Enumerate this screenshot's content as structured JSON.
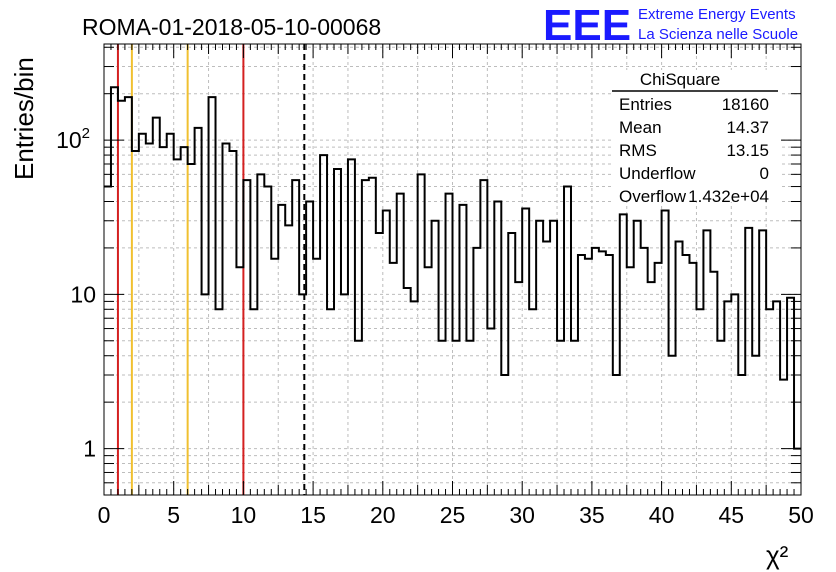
{
  "run_title": "ROMA-01-2018-05-10-00068",
  "logo": {
    "text": "EEE",
    "line1": "Extreme Energy Events",
    "line2": "La Scienza nelle Scuole",
    "color": "#1a1aff"
  },
  "stats_box": {
    "title": "ChiSquare",
    "rows": [
      {
        "label": "Entries",
        "value": "18160"
      },
      {
        "label": "Mean",
        "value": "14.37"
      },
      {
        "label": "RMS",
        "value": "13.15"
      },
      {
        "label": "Underflow",
        "value": "0"
      },
      {
        "label": "Overflow",
        "value": "1.432e+04"
      }
    ]
  },
  "chart_data": {
    "type": "histogram",
    "xlabel": "χ²",
    "ylabel": "Entries/bin",
    "xlim": [
      0,
      50
    ],
    "ylim": [
      0.5,
      420
    ],
    "yscale": "log",
    "grid": true,
    "bin_width": 0.5,
    "x_ticks": [
      "0",
      "5",
      "10",
      "15",
      "20",
      "25",
      "30",
      "35",
      "40",
      "45",
      "50"
    ],
    "y_ticks": [
      {
        "value": 1,
        "label": "1"
      },
      {
        "value": 10,
        "label": "10"
      },
      {
        "value": 100,
        "label": "10",
        "sup": "2"
      }
    ],
    "values": [
      50,
      220,
      180,
      190,
      85,
      110,
      95,
      140,
      90,
      110,
      75,
      90,
      70,
      120,
      10,
      190,
      8,
      95,
      85,
      15,
      55,
      8,
      60,
      50,
      17,
      38,
      28,
      55,
      10,
      40,
      17,
      80,
      8,
      65,
      10,
      75,
      5,
      55,
      57,
      25,
      35,
      16,
      45,
      11,
      9,
      60,
      15,
      30,
      5,
      45,
      5,
      38,
      5,
      20,
      55,
      6,
      40,
      3,
      25,
      12,
      36,
      8,
      30,
      22,
      30,
      5,
      50,
      5,
      18,
      17,
      20,
      19,
      18,
      3,
      33,
      15,
      30,
      20,
      12,
      16,
      35,
      4,
      22,
      18,
      16,
      8,
      26,
      14,
      5,
      9,
      10,
      3,
      27,
      4,
      26,
      8,
      9,
      2.8,
      9.5,
      1
    ],
    "reference_lines": [
      {
        "x": 1,
        "color": "#d42020",
        "style": "solid"
      },
      {
        "x": 2,
        "color": "#f0c030",
        "style": "solid"
      },
      {
        "x": 6,
        "color": "#f0c030",
        "style": "solid"
      },
      {
        "x": 10,
        "color": "#d42020",
        "style": "solid"
      },
      {
        "x": 14.37,
        "color": "#000000",
        "style": "dashed"
      }
    ]
  }
}
